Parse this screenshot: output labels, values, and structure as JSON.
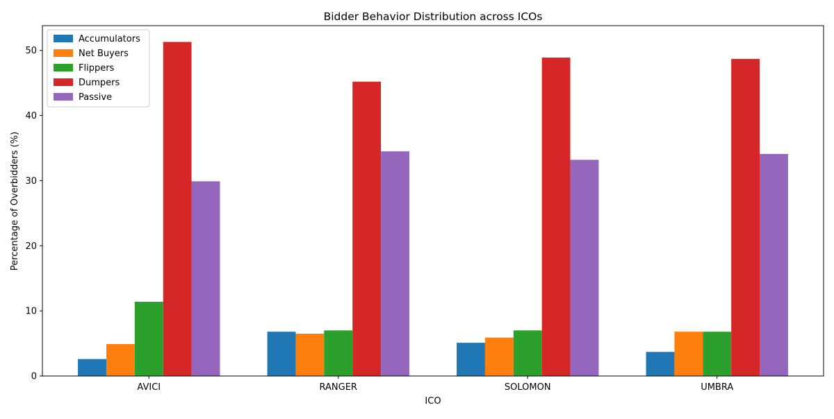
{
  "chart_data": {
    "type": "bar",
    "title": "Bidder Behavior Distribution across ICOs",
    "xlabel": "ICO",
    "ylabel": "Percentage of Overbidders (%)",
    "categories": [
      "AVICI",
      "RANGER",
      "SOLOMON",
      "UMBRA"
    ],
    "ylim": [
      0,
      53.8
    ],
    "yticks": [
      0,
      10,
      20,
      30,
      40,
      50
    ],
    "grid": false,
    "legend_position": "top-left",
    "series": [
      {
        "name": "Accumulators",
        "color": "#1f77b4",
        "values": [
          2.6,
          6.8,
          5.1,
          3.7
        ]
      },
      {
        "name": "Net Buyers",
        "color": "#ff7f0e",
        "values": [
          4.9,
          6.5,
          5.9,
          6.8
        ]
      },
      {
        "name": "Flippers",
        "color": "#2ca02c",
        "values": [
          11.4,
          7.0,
          7.0,
          6.8
        ]
      },
      {
        "name": "Dumpers",
        "color": "#d62728",
        "values": [
          51.3,
          45.2,
          48.9,
          48.7
        ]
      },
      {
        "name": "Passive",
        "color": "#9467bd",
        "values": [
          29.9,
          34.5,
          33.2,
          34.1
        ]
      }
    ]
  }
}
